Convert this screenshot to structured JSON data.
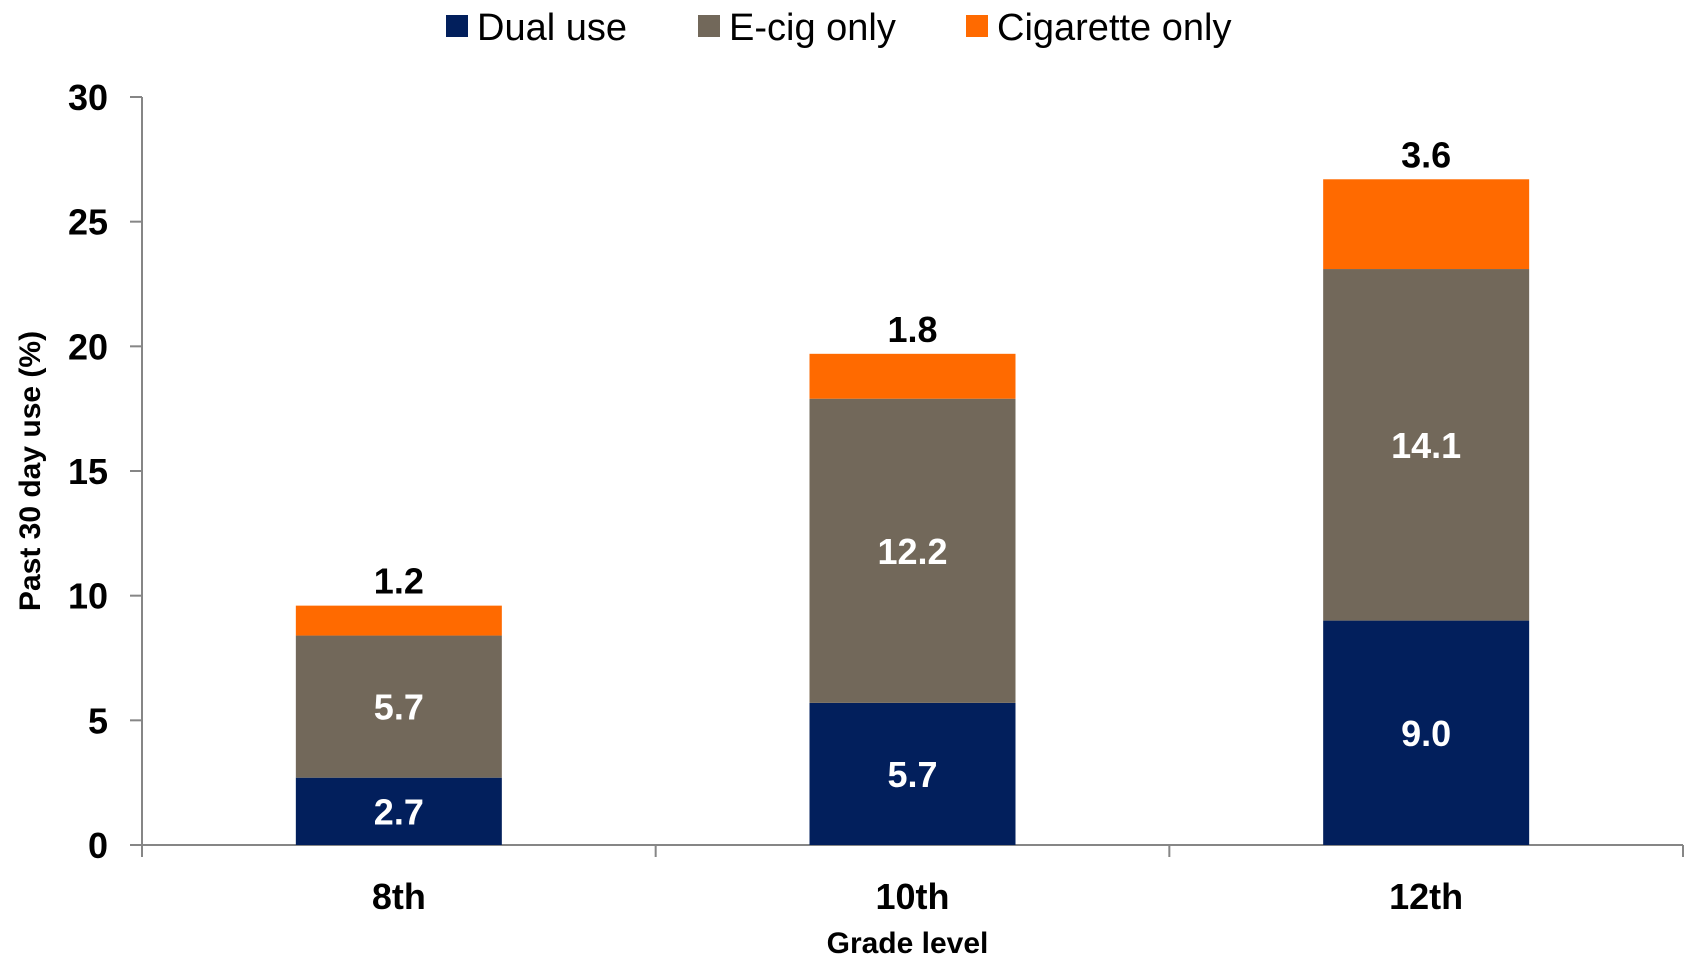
{
  "chart_data": {
    "type": "bar",
    "stacked": true,
    "categories": [
      "8th",
      "10th",
      "12th"
    ],
    "series": [
      {
        "name": "Dual use",
        "values": [
          2.7,
          5.7,
          9.0
        ],
        "labels": [
          "2.7",
          "5.7",
          "9.0"
        ],
        "color": "#021f5c",
        "label_color": "#ffffff"
      },
      {
        "name": "E-cig only",
        "values": [
          5.7,
          12.2,
          14.1
        ],
        "labels": [
          "5.7",
          "12.2",
          "14.1"
        ],
        "color": "#72685a",
        "label_color": "#ffffff"
      },
      {
        "name": "Cigarette only",
        "values": [
          1.2,
          1.8,
          3.6
        ],
        "labels": [
          "1.2",
          "1.8",
          "3.6"
        ],
        "color": "#ff6a00",
        "label_color": "#000000",
        "label_position": "above"
      }
    ],
    "xlabel": "Grade level",
    "ylabel": "Past 30 day use (%)",
    "ylim": [
      0,
      30
    ],
    "yticks": [
      "0",
      "5",
      "10",
      "15",
      "20",
      "25",
      "30"
    ],
    "grid": false,
    "legend_position": "top"
  }
}
